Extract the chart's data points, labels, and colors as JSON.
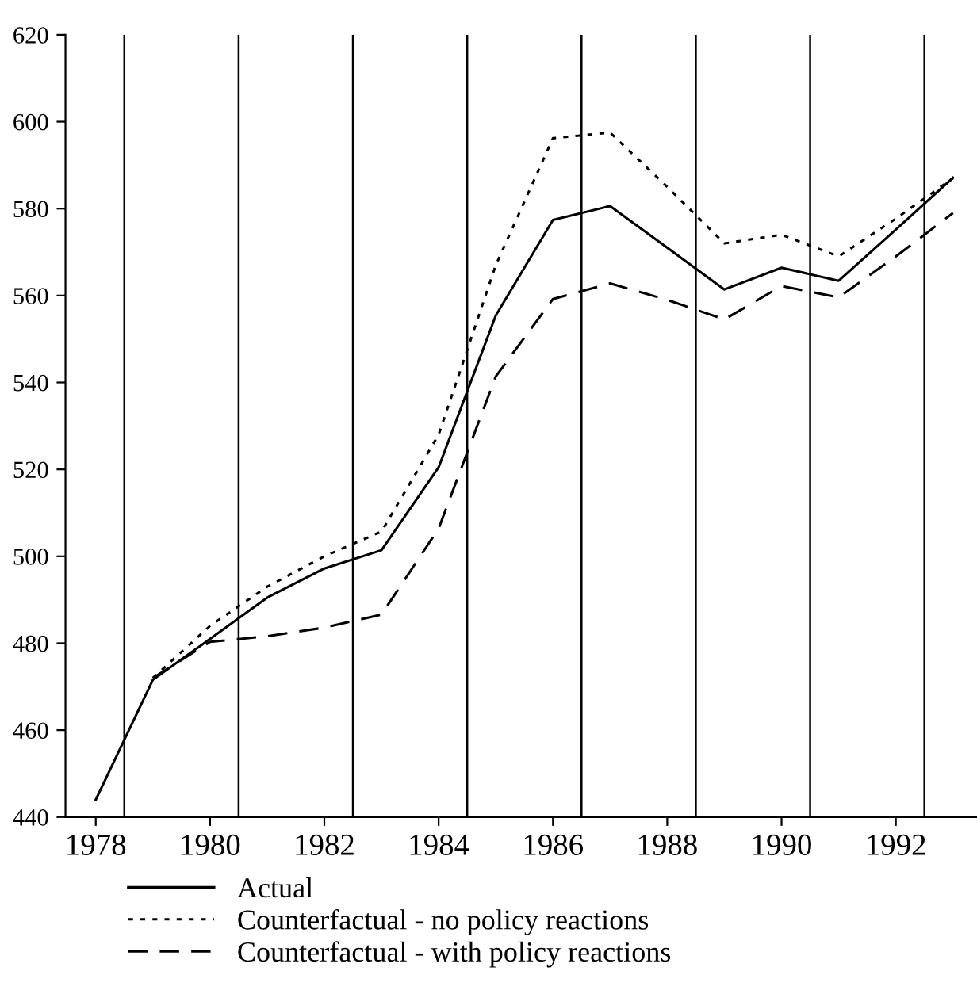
{
  "chart_data": {
    "type": "line",
    "x": [
      1978,
      1979,
      1980,
      1981,
      1982,
      1983,
      1984,
      1985,
      1986,
      1987,
      1988,
      1989,
      1990,
      1991,
      1992,
      1993
    ],
    "series": [
      {
        "name": "Actual",
        "color": "#000000",
        "line_style": "solid",
        "values": [
          444,
          471.6,
          481,
          490.5,
          497.2,
          501.4,
          520.5,
          555.4,
          577.4,
          580.6,
          571,
          561.4,
          566.4,
          563.4,
          575.2,
          587.1
        ]
      },
      {
        "name": "Counterfactual - no policy reactions",
        "color": "#000000",
        "line_style": "dotted",
        "values": [
          null,
          472,
          484,
          493,
          500,
          505.7,
          528,
          567,
          596.2,
          597.5,
          585,
          572,
          574,
          569,
          577.7,
          587
        ]
      },
      {
        "name": "Counterfactual - with policy reactions",
        "color": "#000000",
        "line_style": "dashed",
        "values": [
          null,
          472,
          480.3,
          481.6,
          483.6,
          486.6,
          506.4,
          541.4,
          559.2,
          562.8,
          559,
          554.5,
          562.2,
          559.6,
          569,
          579
        ]
      }
    ],
    "xlim": [
      1977.47,
      1993.42
    ],
    "ylim": [
      440,
      620
    ],
    "xticks": [
      1978,
      1980,
      1982,
      1984,
      1986,
      1988,
      1990,
      1992
    ],
    "yticks": [
      440,
      460,
      480,
      500,
      520,
      540,
      560,
      580,
      600,
      620
    ],
    "ref_lines": [
      {
        "axis": "x",
        "value": 1978.5
      },
      {
        "axis": "x",
        "value": 1980.5
      },
      {
        "axis": "x",
        "value": 1982.5
      },
      {
        "axis": "x",
        "value": 1984.5
      },
      {
        "axis": "x",
        "value": 1986.5
      },
      {
        "axis": "x",
        "value": 1988.5
      },
      {
        "axis": "x",
        "value": 1990.5
      },
      {
        "axis": "x",
        "value": 1992.5
      }
    ],
    "grid": false,
    "legend": "bottom",
    "marker": "none"
  }
}
